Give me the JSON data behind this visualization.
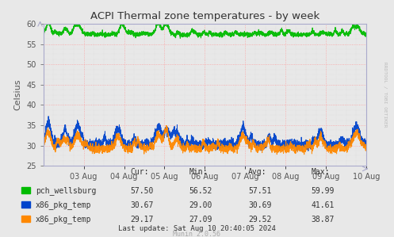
{
  "title": "ACPI Thermal zone temperatures - by week",
  "ylabel": "Celsius",
  "background_color": "#e8e8e8",
  "plot_bg_color": "#e8e8e8",
  "ylim": [
    25,
    60
  ],
  "yticks": [
    25,
    30,
    35,
    40,
    45,
    50,
    55,
    60
  ],
  "xlim": [
    0,
    8
  ],
  "xtick_positions": [
    1,
    2,
    3,
    4,
    5,
    6,
    7,
    8
  ],
  "xtick_labels": [
    "03 Aug",
    "04 Aug",
    "05 Aug",
    "06 Aug",
    "07 Aug",
    "08 Aug",
    "09 Aug",
    "10 Aug"
  ],
  "series": [
    {
      "name": "pch_wellsburg",
      "color": "#00bb00",
      "base": 57.3,
      "noise_std": 0.25,
      "spike_positions": [
        0.12,
        0.55,
        0.85,
        1.95,
        2.85,
        3.05,
        7.75
      ],
      "spike_heights": [
        2.5,
        1.5,
        2.5,
        2.5,
        2.5,
        2.5,
        2.0
      ],
      "spike_widths": [
        0.06,
        0.05,
        0.08,
        0.06,
        0.06,
        0.06,
        0.08
      ],
      "cur": 57.5,
      "min": 56.52,
      "avg": 57.51,
      "max": 59.99
    },
    {
      "name": "x86_pkg_temp",
      "color": "#0044cc",
      "base": 30.2,
      "noise_std": 0.5,
      "spike_positions": [
        0.12,
        0.55,
        0.85,
        1.85,
        2.85,
        3.05,
        3.3,
        4.95,
        6.85,
        7.75
      ],
      "spike_heights": [
        5.0,
        2.5,
        4.0,
        4.0,
        4.5,
        3.5,
        3.0,
        3.5,
        2.0,
        4.5
      ],
      "spike_widths": [
        0.07,
        0.06,
        0.08,
        0.07,
        0.07,
        0.06,
        0.06,
        0.07,
        0.06,
        0.08
      ],
      "cur": 30.67,
      "min": 29.0,
      "avg": 30.69,
      "max": 41.61
    },
    {
      "name": "x86_pkg_temp",
      "color": "#ff8800",
      "base": 29.2,
      "noise_std": 0.45,
      "spike_positions": [
        0.12,
        0.55,
        0.85,
        1.85,
        2.85,
        3.05,
        3.3,
        4.95,
        6.85,
        7.75
      ],
      "spike_heights": [
        4.0,
        2.0,
        3.0,
        3.0,
        3.5,
        3.0,
        2.5,
        3.0,
        1.5,
        4.0
      ],
      "spike_widths": [
        0.07,
        0.06,
        0.08,
        0.07,
        0.07,
        0.06,
        0.06,
        0.07,
        0.06,
        0.08
      ],
      "cur": 29.17,
      "min": 27.09,
      "avg": 29.52,
      "max": 38.87
    }
  ],
  "major_grid_color": "#ff9999",
  "minor_grid_color": "#cccccc",
  "watermark": "RRDTOOL / TOBI OETIKER",
  "footer_update": "Last update: Sat Aug 10 20:40:05 2024",
  "footer_munin": "Munin 2.0.56",
  "table_headers": [
    "Cur:",
    "Min:",
    "Avg:",
    "Max:"
  ],
  "spine_color": "#aaaacc",
  "tick_color": "#555555",
  "text_color": "#333333",
  "title_color": "#333333"
}
